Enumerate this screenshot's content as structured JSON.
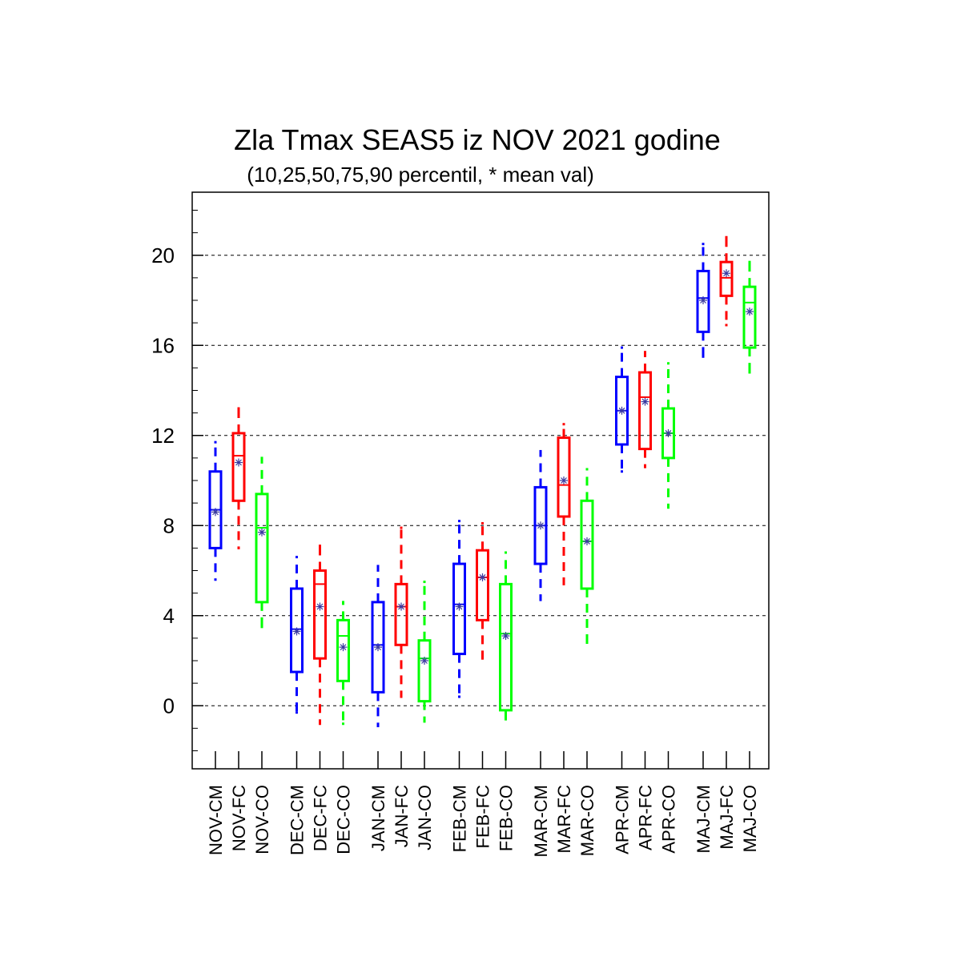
{
  "chart_data": {
    "type": "boxplot",
    "title": "Zla Tmax SEAS5 iz NOV 2021 godine",
    "subtitle": "(10,25,50,75,90 percentil, * mean val)",
    "ylim": [
      -2.8,
      22.8
    ],
    "yticks": [
      0,
      4,
      8,
      12,
      16,
      20
    ],
    "grid": "horizontal dashed at major ticks",
    "series_colors": {
      "CM": "#0000ff",
      "FC": "#ff0000",
      "CO": "#00ff00"
    },
    "boxes": [
      {
        "label": "NOV-CM",
        "series": "CM",
        "p10": 5.6,
        "p25": 7.0,
        "p50": 8.7,
        "p75": 10.4,
        "p90": 11.7,
        "mean": 8.6
      },
      {
        "label": "NOV-FC",
        "series": "FC",
        "p10": 7.0,
        "p25": 9.1,
        "p50": 11.1,
        "p75": 12.1,
        "p90": 13.2,
        "mean": 10.8
      },
      {
        "label": "NOV-CO",
        "series": "CO",
        "p10": 3.5,
        "p25": 4.6,
        "p50": 7.9,
        "p75": 9.4,
        "p90": 11.0,
        "mean": 7.7
      },
      {
        "label": "DEC-CM",
        "series": "CM",
        "p10": -0.3,
        "p25": 1.5,
        "p50": 3.4,
        "p75": 5.2,
        "p90": 6.6,
        "mean": 3.3
      },
      {
        "label": "DEC-FC",
        "series": "FC",
        "p10": -0.8,
        "p25": 2.1,
        "p50": 5.4,
        "p75": 6.0,
        "p90": 7.1,
        "mean": 4.4
      },
      {
        "label": "DEC-CO",
        "series": "CO",
        "p10": -0.8,
        "p25": 1.1,
        "p50": 3.1,
        "p75": 3.8,
        "p90": 4.6,
        "mean": 2.6
      },
      {
        "label": "JAN-CM",
        "series": "CM",
        "p10": -0.9,
        "p25": 0.6,
        "p50": 2.7,
        "p75": 4.6,
        "p90": 6.2,
        "mean": 2.6
      },
      {
        "label": "JAN-FC",
        "series": "FC",
        "p10": 0.4,
        "p25": 2.7,
        "p50": 4.4,
        "p75": 5.4,
        "p90": 7.9,
        "mean": 4.4
      },
      {
        "label": "JAN-CO",
        "series": "CO",
        "p10": -0.7,
        "p25": 0.2,
        "p50": 2.1,
        "p75": 2.9,
        "p90": 5.5,
        "mean": 2.0
      },
      {
        "label": "FEB-CM",
        "series": "CM",
        "p10": 0.4,
        "p25": 2.3,
        "p50": 4.5,
        "p75": 6.3,
        "p90": 8.2,
        "mean": 4.4
      },
      {
        "label": "FEB-FC",
        "series": "FC",
        "p10": 2.1,
        "p25": 3.8,
        "p50": 5.7,
        "p75": 6.9,
        "p90": 8.1,
        "mean": 5.7
      },
      {
        "label": "FEB-CO",
        "series": "CO",
        "p10": -0.6,
        "p25": -0.2,
        "p50": 3.2,
        "p75": 5.4,
        "p90": 6.8,
        "mean": 3.1
      },
      {
        "label": "MAR-CM",
        "series": "CM",
        "p10": 4.7,
        "p25": 6.3,
        "p50": 8.0,
        "p75": 9.7,
        "p90": 11.3,
        "mean": 8.0
      },
      {
        "label": "MAR-FC",
        "series": "FC",
        "p10": 5.4,
        "p25": 8.4,
        "p50": 9.8,
        "p75": 11.9,
        "p90": 12.5,
        "mean": 10.0
      },
      {
        "label": "MAR-CO",
        "series": "CO",
        "p10": 2.8,
        "p25": 5.2,
        "p50": 7.3,
        "p75": 9.1,
        "p90": 10.5,
        "mean": 7.3
      },
      {
        "label": "APR-CM",
        "series": "CM",
        "p10": 10.4,
        "p25": 11.6,
        "p50": 13.1,
        "p75": 14.6,
        "p90": 15.9,
        "mean": 13.1
      },
      {
        "label": "APR-FC",
        "series": "FC",
        "p10": 10.6,
        "p25": 11.4,
        "p50": 13.7,
        "p75": 14.8,
        "p90": 15.7,
        "mean": 13.5
      },
      {
        "label": "APR-CO",
        "series": "CO",
        "p10": 8.8,
        "p25": 11.0,
        "p50": 12.1,
        "p75": 13.2,
        "p90": 15.2,
        "mean": 12.1
      },
      {
        "label": "MAJ-CM",
        "series": "CM",
        "p10": 15.5,
        "p25": 16.6,
        "p50": 18.1,
        "p75": 19.3,
        "p90": 20.5,
        "mean": 18.0
      },
      {
        "label": "MAJ-FC",
        "series": "FC",
        "p10": 16.9,
        "p25": 18.2,
        "p50": 19.0,
        "p75": 19.7,
        "p90": 20.8,
        "mean": 19.2
      },
      {
        "label": "MAJ-CO",
        "series": "CO",
        "p10": 14.8,
        "p25": 15.9,
        "p50": 17.9,
        "p75": 18.6,
        "p90": 19.7,
        "mean": 17.5
      }
    ]
  }
}
